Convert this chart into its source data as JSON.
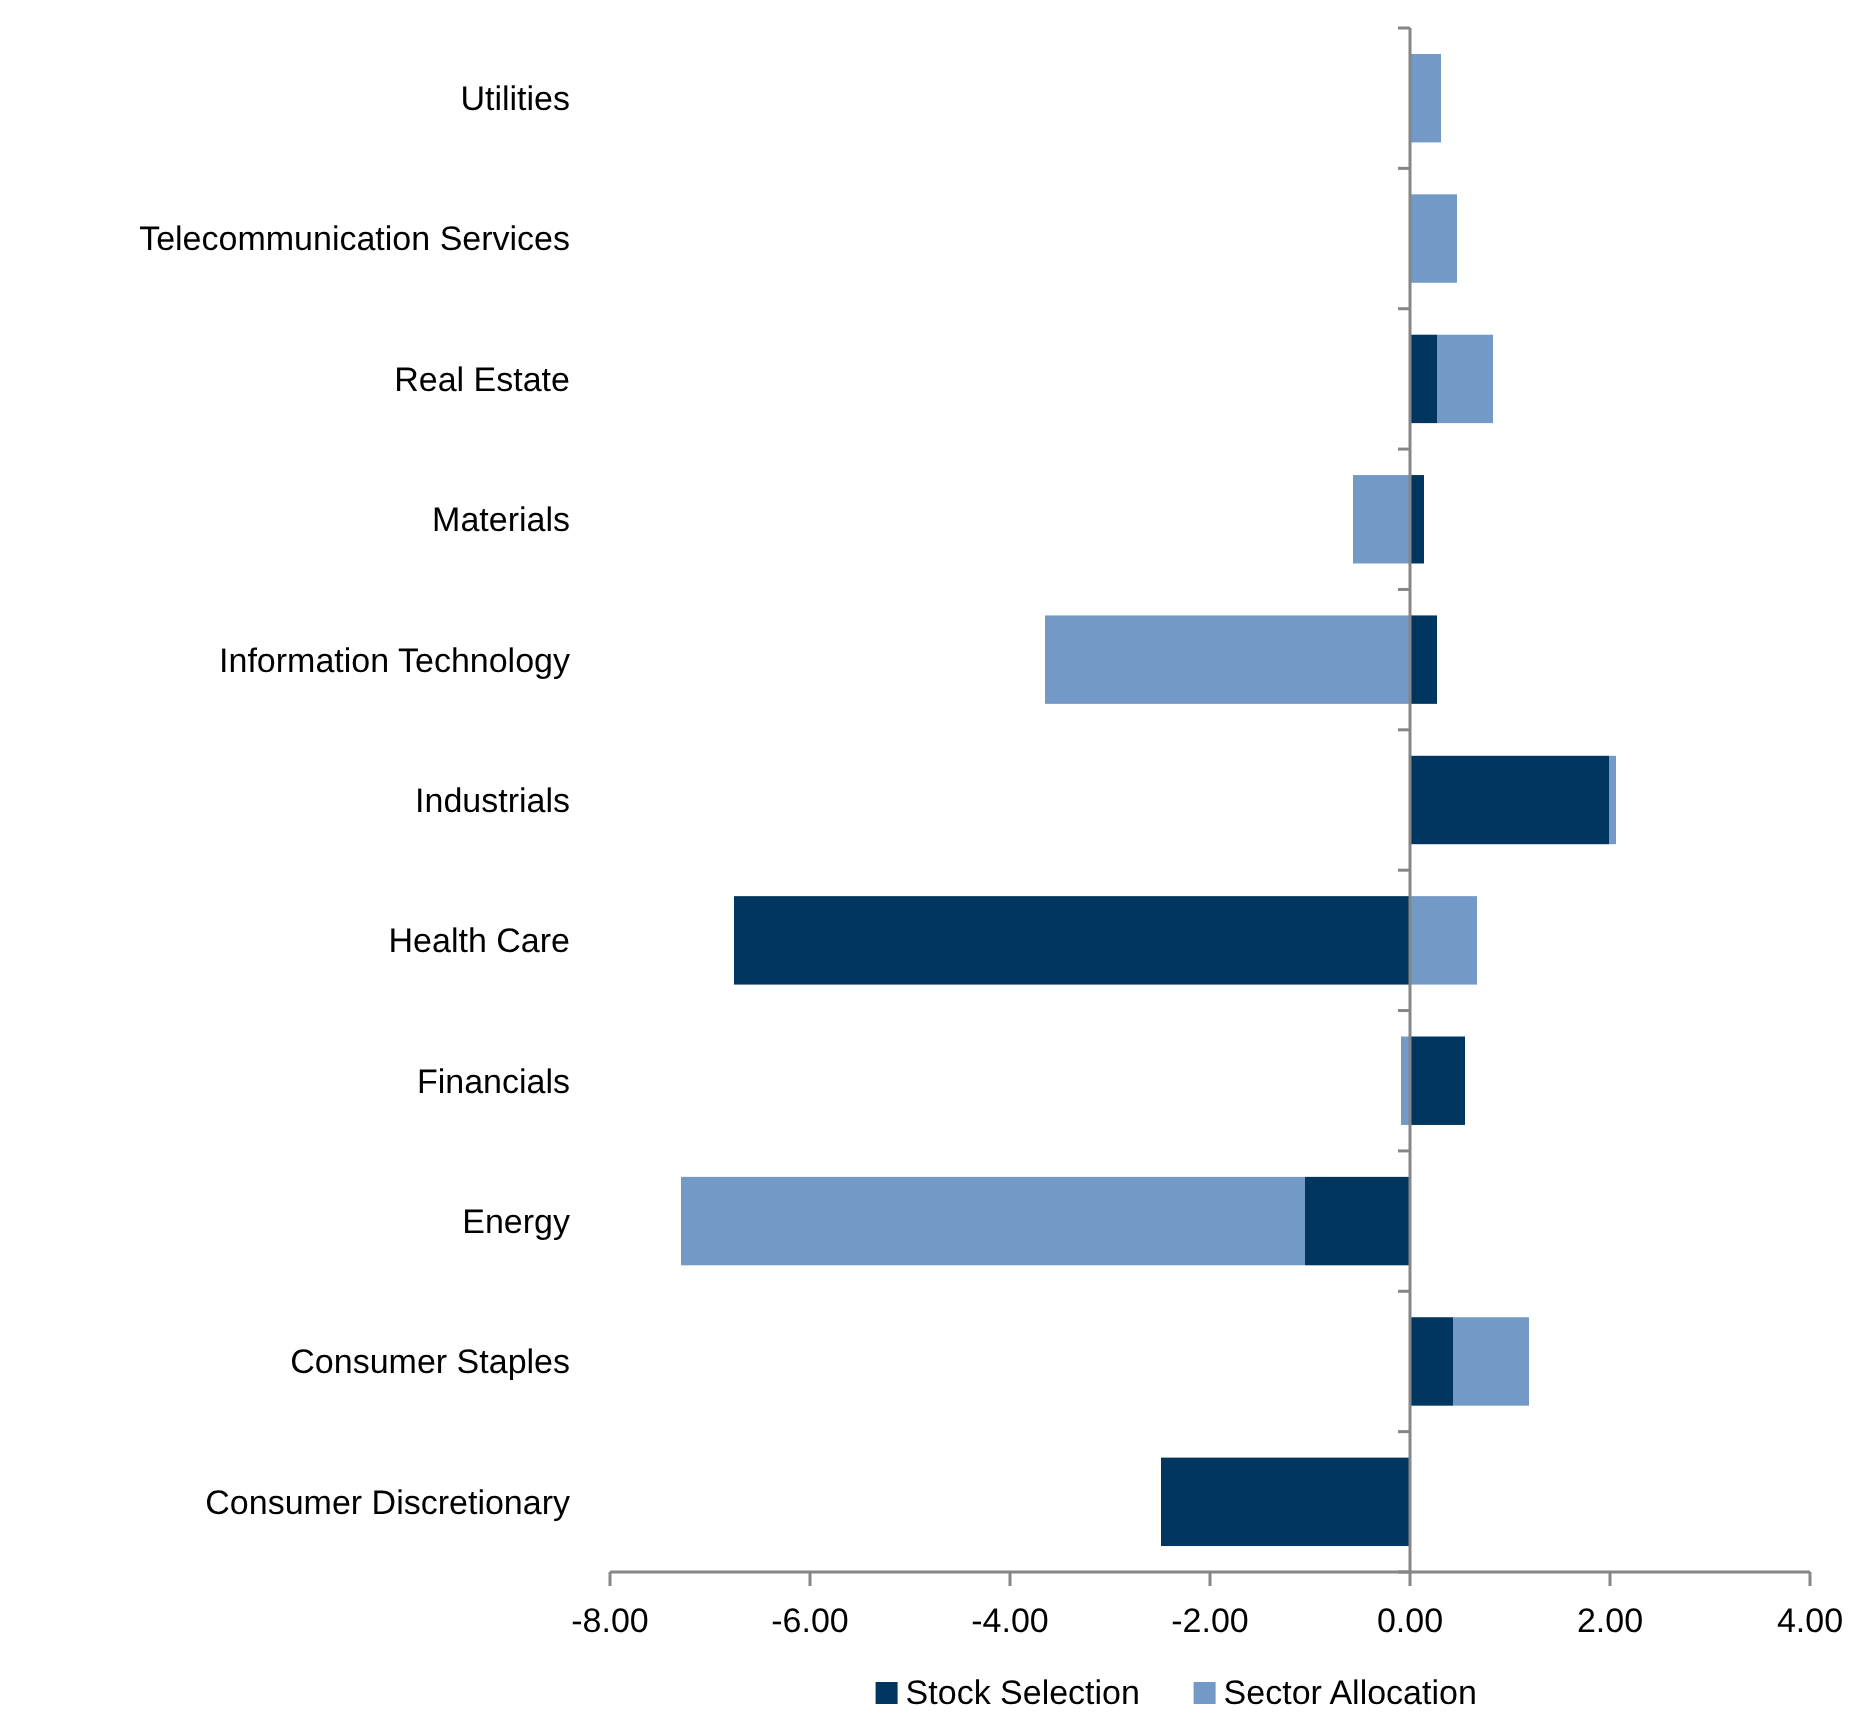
{
  "chart_data": {
    "type": "bar",
    "orientation": "horizontal",
    "stacked": true,
    "categories": [
      "Utilities",
      "Telecommunication Services",
      "Real Estate",
      "Materials",
      "Information Technology",
      "Industrials",
      "Health Care",
      "Financials",
      "Energy",
      "Consumer Staples",
      "Consumer Discretionary"
    ],
    "series": [
      {
        "name": "Stock Selection",
        "color": "#003660",
        "values": [
          0,
          0,
          0.27,
          0.14,
          0.27,
          1.99,
          -6.76,
          0.55,
          -1.05,
          0.43,
          -2.49
        ]
      },
      {
        "name": "Sector Allocation",
        "color": "#7399c6",
        "values": [
          0.31,
          0.47,
          0.56,
          -0.57,
          -3.65,
          0.07,
          0.67,
          -0.09,
          -6.24,
          0.76,
          0
        ]
      }
    ],
    "xlim": [
      -8,
      4
    ],
    "xticks": [
      {
        "value": -8,
        "label": "-8.00"
      },
      {
        "value": -6,
        "label": "-6.00"
      },
      {
        "value": -4,
        "label": "-4.00"
      },
      {
        "value": -2,
        "label": "-2.00"
      },
      {
        "value": 0,
        "label": "0.00"
      },
      {
        "value": 2,
        "label": "2.00"
      },
      {
        "value": 4,
        "label": "4.00"
      }
    ],
    "legend": "bottom"
  }
}
